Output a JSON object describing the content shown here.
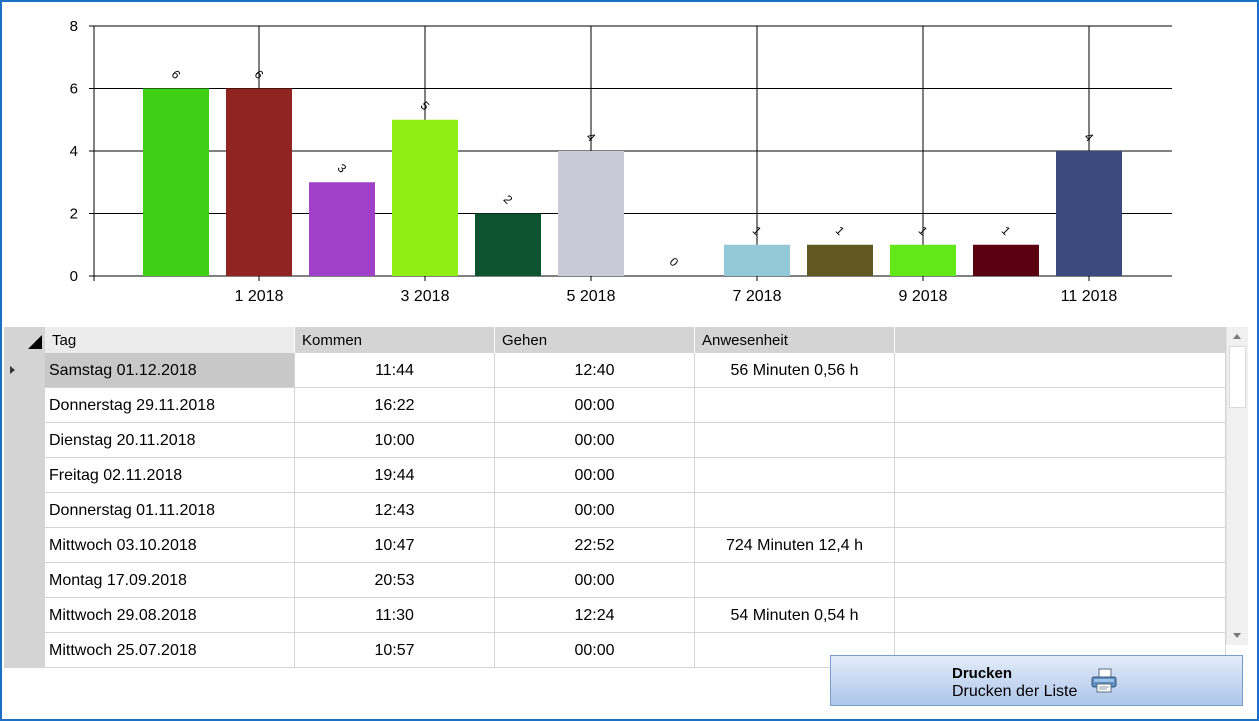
{
  "chart_data": {
    "type": "bar",
    "values": [
      6,
      6,
      3,
      5,
      2,
      4,
      0,
      1,
      1,
      1,
      1,
      4
    ],
    "colors": [
      "#3fcf14",
      "#8f2420",
      "#a040c8",
      "#8fee14",
      "#0c5530",
      "#c8cad8",
      "#ffffff",
      "#93c8d8",
      "#615820",
      "#62e818",
      "#5a0010",
      "#3a4a7c"
    ],
    "x_tick_labels": [
      "1 2018",
      "3 2018",
      "5 2018",
      "7 2018",
      "9 2018",
      "11 2018"
    ],
    "y_ticks": [
      "0",
      "2",
      "4",
      "6",
      "8"
    ],
    "ylim": [
      0,
      8
    ],
    "title": "",
    "xlabel": "",
    "ylabel": ""
  },
  "grid": {
    "columns": [
      "Tag",
      "Kommen",
      "Gehen",
      "Anwesenheit"
    ],
    "rows": [
      {
        "tag": "Samstag 01.12.2018",
        "kommen": "11:44",
        "gehen": "12:40",
        "anwesenheit": "56 Minuten 0,56 h"
      },
      {
        "tag": "Donnerstag 29.11.2018",
        "kommen": "16:22",
        "gehen": "00:00",
        "anwesenheit": ""
      },
      {
        "tag": "Dienstag 20.11.2018",
        "kommen": "10:00",
        "gehen": "00:00",
        "anwesenheit": ""
      },
      {
        "tag": "Freitag 02.11.2018",
        "kommen": "19:44",
        "gehen": "00:00",
        "anwesenheit": ""
      },
      {
        "tag": "Donnerstag 01.11.2018",
        "kommen": "12:43",
        "gehen": "00:00",
        "anwesenheit": ""
      },
      {
        "tag": "Mittwoch 03.10.2018",
        "kommen": "10:47",
        "gehen": "22:52",
        "anwesenheit": "724 Minuten 12,4 h"
      },
      {
        "tag": "Montag 17.09.2018",
        "kommen": "20:53",
        "gehen": "00:00",
        "anwesenheit": ""
      },
      {
        "tag": "Mittwoch 29.08.2018",
        "kommen": "11:30",
        "gehen": "12:24",
        "anwesenheit": "54 Minuten 0,54 h"
      },
      {
        "tag": "Mittwoch 25.07.2018",
        "kommen": "10:57",
        "gehen": "00:00",
        "anwesenheit": ""
      }
    ]
  },
  "print_button": {
    "title": "Drucken",
    "subtitle": "Drucken der Liste",
    "icon": "printer-icon"
  }
}
